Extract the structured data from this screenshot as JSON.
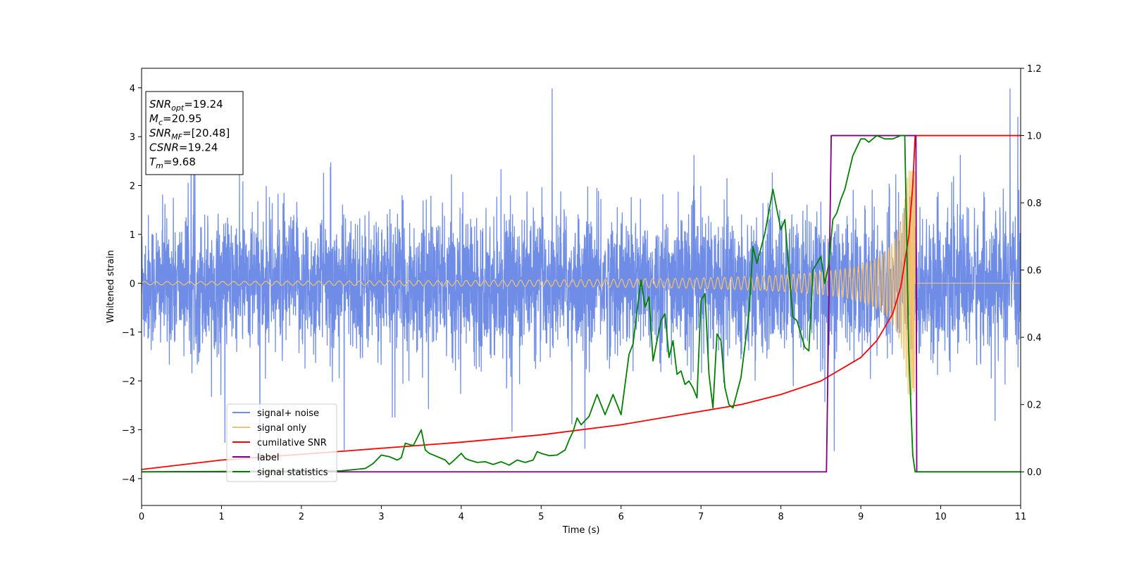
{
  "chart_data": {
    "type": "line",
    "xlabel": "Time (s)",
    "ylabel": "Whitened strain",
    "xlim": [
      0,
      11
    ],
    "ylim_left": [
      -4.55,
      4.4
    ],
    "ylim_right": [
      -0.1,
      1.2
    ],
    "x_ticks": [
      0,
      1,
      2,
      3,
      4,
      5,
      6,
      7,
      8,
      9,
      10,
      11
    ],
    "y_ticks_left": [
      -4,
      -3,
      -2,
      -1,
      0,
      1,
      2,
      3,
      4
    ],
    "y_ticks_left_labels": [
      "−4",
      "−3",
      "−2",
      "−1",
      "0",
      "1",
      "2",
      "3",
      "4"
    ],
    "y_ticks_right": [
      0.0,
      0.2,
      0.4,
      0.6,
      0.8,
      1.0,
      1.2
    ],
    "y_ticks_right_labels": [
      "0.0",
      "0.2",
      "0.4",
      "0.6",
      "0.8",
      "1.0",
      "1.2"
    ],
    "grid": false,
    "legend_position": "lower-left",
    "info_box": [
      {
        "sym": "SNR",
        "sub": "opt",
        "val": "=19.24"
      },
      {
        "sym": "M",
        "sub": "c",
        "val": "=20.95"
      },
      {
        "sym": "SNR",
        "sub": "MF",
        "val": "=[20.48]"
      },
      {
        "sym": "CSNR",
        "sub": "",
        "val": "=19.24"
      },
      {
        "sym": "T",
        "sub": "m",
        "val": "=9.68"
      }
    ],
    "series": [
      {
        "name": "signal+ noise",
        "axis": "left",
        "color": "#6f8de6",
        "kind": "noise",
        "std": 0.95,
        "range": [
          -4.17,
          3.98
        ],
        "x_range": [
          0,
          11
        ]
      },
      {
        "name": "signal only",
        "axis": "left",
        "color": "#f5c26b",
        "kind": "chirp",
        "merger_time": 9.68,
        "peak_amplitude": 2.3,
        "x_range": [
          0,
          11
        ]
      },
      {
        "name": "cumilative SNR",
        "axis": "right",
        "color": "#ff0000",
        "kind": "line",
        "x": [
          0,
          1,
          2,
          3,
          4,
          5,
          6,
          7,
          7.5,
          8,
          8.5,
          9,
          9.2,
          9.4,
          9.5,
          9.6,
          9.65,
          9.68,
          11
        ],
        "y": [
          0.007,
          0.035,
          0.052,
          0.07,
          0.088,
          0.11,
          0.14,
          0.18,
          0.2,
          0.23,
          0.27,
          0.34,
          0.39,
          0.47,
          0.55,
          0.7,
          0.85,
          1.0,
          1.0
        ]
      },
      {
        "name": "label",
        "axis": "right",
        "color": "#800080",
        "kind": "line",
        "x": [
          0,
          8.57,
          8.63,
          9.69,
          9.7,
          11
        ],
        "y": [
          0,
          0,
          1,
          1,
          0,
          0
        ]
      },
      {
        "name": "signal statistics",
        "axis": "right",
        "color": "#008000",
        "kind": "line",
        "x": [
          0,
          2.5,
          2.8,
          2.9,
          3.0,
          3.1,
          3.2,
          3.25,
          3.3,
          3.4,
          3.5,
          3.55,
          3.6,
          3.7,
          3.8,
          3.85,
          3.9,
          4.0,
          4.05,
          4.1,
          4.2,
          4.3,
          4.4,
          4.5,
          4.6,
          4.7,
          4.8,
          4.9,
          4.95,
          5.0,
          5.1,
          5.2,
          5.3,
          5.35,
          5.4,
          5.45,
          5.5,
          5.6,
          5.7,
          5.8,
          5.9,
          6.0,
          6.1,
          6.15,
          6.2,
          6.25,
          6.3,
          6.35,
          6.4,
          6.5,
          6.55,
          6.6,
          6.65,
          6.7,
          6.75,
          6.8,
          6.85,
          6.9,
          6.95,
          7.0,
          7.05,
          7.1,
          7.15,
          7.2,
          7.25,
          7.3,
          7.35,
          7.4,
          7.5,
          7.6,
          7.65,
          7.7,
          7.8,
          7.9,
          7.95,
          8.0,
          8.05,
          8.1,
          8.15,
          8.2,
          8.3,
          8.35,
          8.4,
          8.5,
          8.55,
          8.6,
          8.65,
          8.7,
          8.75,
          8.8,
          8.9,
          9.0,
          9.05,
          9.1,
          9.15,
          9.2,
          9.3,
          9.4,
          9.5,
          9.55,
          9.6,
          9.65,
          9.68,
          9.72,
          9.75,
          9.8,
          11
        ],
        "y": [
          0,
          0.003,
          0.01,
          0.025,
          0.05,
          0.045,
          0.035,
          0.042,
          0.085,
          0.078,
          0.125,
          0.065,
          0.055,
          0.045,
          0.035,
          0.022,
          0.032,
          0.055,
          0.04,
          0.035,
          0.028,
          0.03,
          0.022,
          0.03,
          0.02,
          0.035,
          0.028,
          0.035,
          0.06,
          0.055,
          0.048,
          0.05,
          0.065,
          0.095,
          0.12,
          0.16,
          0.14,
          0.165,
          0.23,
          0.17,
          0.23,
          0.17,
          0.35,
          0.38,
          0.48,
          0.57,
          0.49,
          0.52,
          0.33,
          0.45,
          0.47,
          0.34,
          0.39,
          0.29,
          0.3,
          0.26,
          0.27,
          0.25,
          0.22,
          0.51,
          0.53,
          0.29,
          0.19,
          0.41,
          0.39,
          0.25,
          0.2,
          0.19,
          0.28,
          0.47,
          0.67,
          0.62,
          0.71,
          0.84,
          0.78,
          0.72,
          0.75,
          0.6,
          0.46,
          0.45,
          0.37,
          0.36,
          0.6,
          0.64,
          0.56,
          0.62,
          0.75,
          0.77,
          0.81,
          0.84,
          0.94,
          0.99,
          0.99,
          0.98,
          0.99,
          1.0,
          0.99,
          0.99,
          1.0,
          1.0,
          0.36,
          0.05,
          0.0,
          0.0,
          0.0,
          0.0,
          0.0
        ]
      }
    ]
  }
}
